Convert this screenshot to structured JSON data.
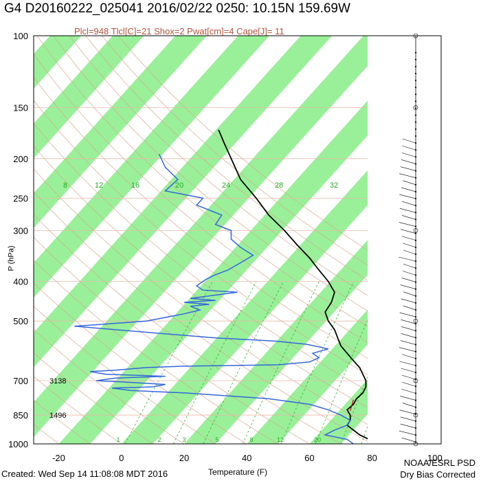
{
  "header": {
    "title": "G4 D20160222_025041 2016/02/22 0250: 10.15N 159.69W",
    "subtitle": "Plcl=948 Tlcl[C]=21 Shox=2 Pwat[cm]=4 Cape[J]= 11"
  },
  "footer": {
    "created": "Created: Wed Sep 14 11:08:08 MDT 2016",
    "org": "NOAA/ESRL PSD",
    "note": "Dry Bias Corrected"
  },
  "chart_data": {
    "type": "line",
    "title": "G4 D20160222_025041 2016/02/22 0250: 10.15N 159.69W",
    "xlabel": "Temperature (F)",
    "ylabel": "P (hPa)",
    "xlim": [
      -28,
      102
    ],
    "ylim": [
      1000,
      100
    ],
    "log_y": true,
    "x_ticks": [
      "-20",
      "0",
      "20",
      "40",
      "60",
      "80",
      "100"
    ],
    "y_ticks": [
      "100",
      "150",
      "200",
      "250",
      "300",
      "400",
      "500",
      "700",
      "850",
      "1000"
    ],
    "height_labels": [
      {
        "p": 700,
        "text": "3138"
      },
      {
        "p": 850,
        "text": "1496"
      }
    ],
    "mixing_ratio_labels": [
      "8",
      "12",
      "16",
      "20",
      "24",
      "28",
      "32"
    ],
    "bottom_labels": [
      "1",
      "2",
      "3",
      "5",
      "8",
      "12",
      "20"
    ],
    "colors": {
      "temperature": "#000000",
      "dewpoint": "#3366dd",
      "isotherm_band": "#99f099",
      "adiabat": "#d8a890",
      "mixing_ratio": "#22aa22",
      "parcel": "#cc0000"
    },
    "series": [
      {
        "name": "Temperature",
        "points": [
          [
            82,
            1000
          ],
          [
            79,
            975
          ],
          [
            76,
            950
          ],
          [
            74,
            925
          ],
          [
            72,
            900
          ],
          [
            73,
            875
          ],
          [
            73,
            850
          ],
          [
            72,
            825
          ],
          [
            74,
            800
          ],
          [
            75,
            775
          ],
          [
            77,
            750
          ],
          [
            78,
            725
          ],
          [
            78,
            700
          ],
          [
            77,
            675
          ],
          [
            76,
            650
          ],
          [
            74,
            625
          ],
          [
            72,
            600
          ],
          [
            70,
            575
          ],
          [
            69,
            550
          ],
          [
            68,
            525
          ],
          [
            66,
            500
          ],
          [
            65,
            475
          ],
          [
            67,
            450
          ],
          [
            68,
            425
          ],
          [
            66,
            400
          ],
          [
            63,
            375
          ],
          [
            60,
            350
          ],
          [
            56,
            325
          ],
          [
            52,
            300
          ],
          [
            47,
            275
          ],
          [
            43,
            250
          ],
          [
            38,
            225
          ],
          [
            35,
            200
          ],
          [
            33,
            185
          ],
          [
            31,
            170
          ]
        ]
      },
      {
        "name": "Dewpoint",
        "points": [
          [
            74,
            1000
          ],
          [
            72,
            975
          ],
          [
            65,
            950
          ],
          [
            68,
            925
          ],
          [
            72,
            900
          ],
          [
            73,
            875
          ],
          [
            70,
            850
          ],
          [
            66,
            825
          ],
          [
            60,
            800
          ],
          [
            47,
            775
          ],
          [
            20,
            750
          ],
          [
            3,
            740
          ],
          [
            -3,
            730
          ],
          [
            10,
            725
          ],
          [
            14,
            715
          ],
          [
            0,
            705
          ],
          [
            -8,
            700
          ],
          [
            -2,
            690
          ],
          [
            14,
            683
          ],
          [
            -5,
            675
          ],
          [
            -10,
            665
          ],
          [
            -2,
            660
          ],
          [
            8,
            650
          ],
          [
            20,
            645
          ],
          [
            50,
            640
          ],
          [
            60,
            630
          ],
          [
            63,
            615
          ],
          [
            61,
            600
          ],
          [
            66,
            585
          ],
          [
            59,
            570
          ],
          [
            49,
            560
          ],
          [
            30,
            550
          ],
          [
            -15,
            515
          ],
          [
            8,
            500
          ],
          [
            20,
            480
          ],
          [
            25,
            470
          ],
          [
            22,
            460
          ],
          [
            28,
            455
          ],
          [
            20,
            450
          ],
          [
            30,
            445
          ],
          [
            22,
            440
          ],
          [
            32,
            430
          ],
          [
            37,
            425
          ],
          [
            26,
            420
          ],
          [
            24,
            410
          ],
          [
            27,
            395
          ],
          [
            30,
            385
          ],
          [
            34,
            375
          ],
          [
            38,
            360
          ],
          [
            42,
            345
          ],
          [
            38,
            330
          ],
          [
            35,
            315
          ],
          [
            35,
            300
          ],
          [
            30,
            290
          ],
          [
            32,
            275
          ],
          [
            24,
            260
          ],
          [
            26,
            250
          ],
          [
            14,
            240
          ],
          [
            18,
            225
          ],
          [
            14,
            210
          ],
          [
            12,
            195
          ]
        ]
      }
    ]
  }
}
